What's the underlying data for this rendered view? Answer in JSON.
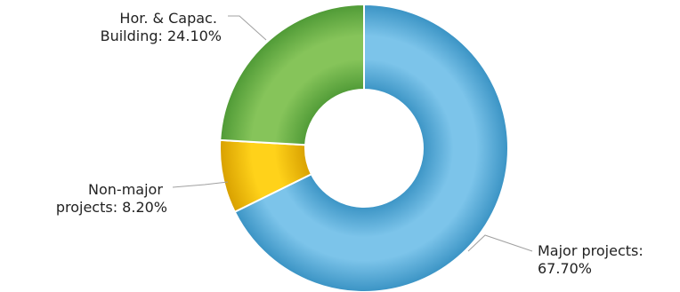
{
  "chart_data": {
    "type": "pie",
    "donut": true,
    "title": "",
    "legend": "none",
    "slices": [
      {
        "label_lines": [
          "Major projects:",
          "67.70%"
        ],
        "category": "Major projects",
        "value": 67.7,
        "color": "#7cc4ea",
        "color_dark": "#3a93c4"
      },
      {
        "label_lines": [
          "Non-major",
          "projects: 8.20%"
        ],
        "category": "Non-major projects",
        "value": 8.2,
        "color": "#ffd21a",
        "color_dark": "#d8a000"
      },
      {
        "label_lines": [
          "Hor. & Capac.",
          "Building: 24.10%"
        ],
        "category": "Hor. & Capac. Building",
        "value": 24.1,
        "color": "#86c45a",
        "color_dark": "#4f9a36"
      }
    ]
  }
}
